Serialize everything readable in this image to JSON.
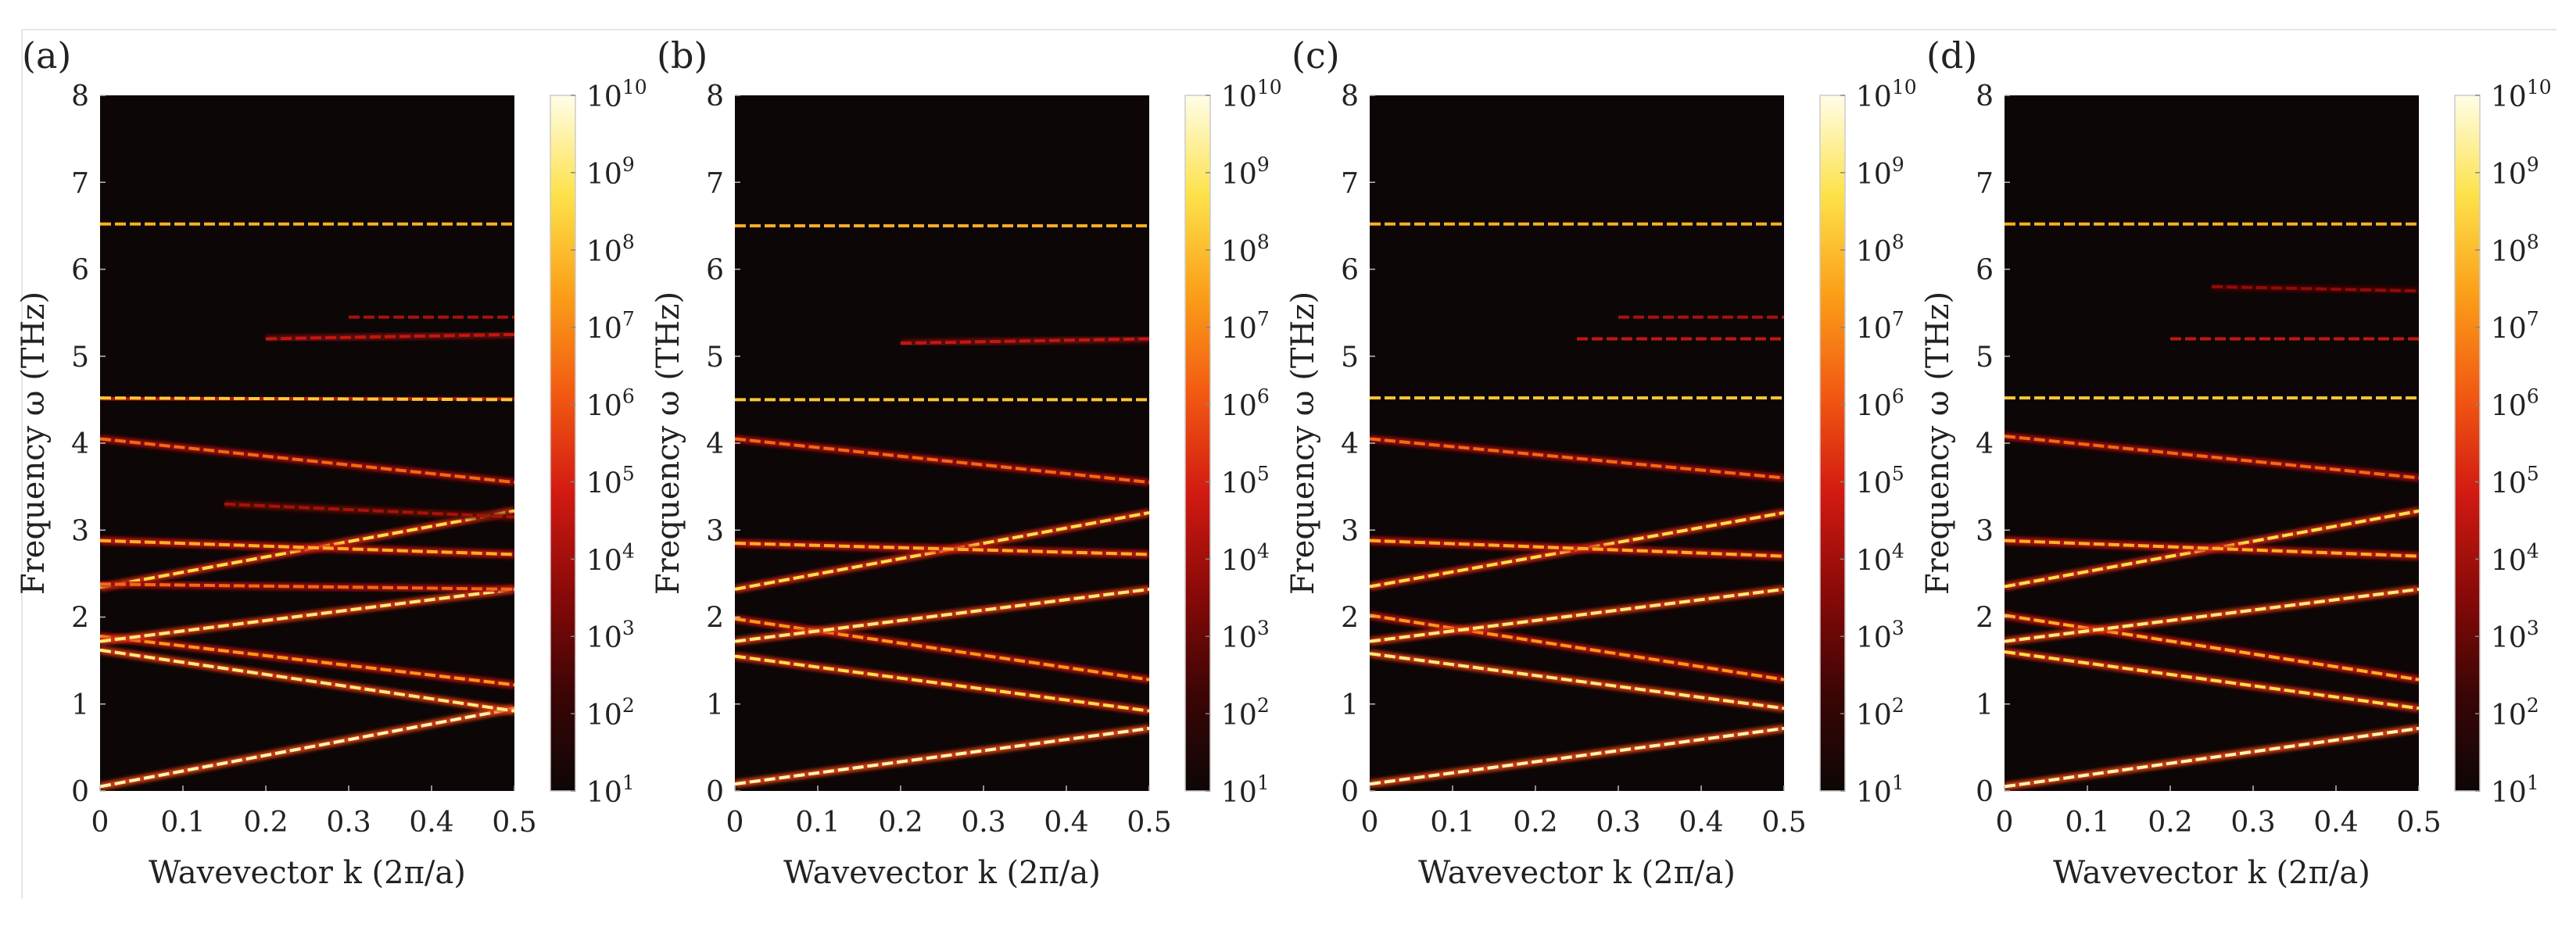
{
  "figure": {
    "background": "#ffffff",
    "colormap": [
      "#0d0606",
      "#3d0505",
      "#8a0a08",
      "#d21a12",
      "#f25a12",
      "#fb9f18",
      "#fde24a",
      "#fffde8"
    ]
  },
  "chart_data": [
    {
      "type": "heatmap",
      "panel_label": "(a)",
      "xlabel": "Wavevector k (2π/a)",
      "ylabel": "Frequency ω (THz)",
      "xlim": [
        0,
        0.5
      ],
      "ylim": [
        0,
        8
      ],
      "xticks": [
        "0",
        "0.1",
        "0.2",
        "0.3",
        "0.4",
        "0.5"
      ],
      "yticks": [
        "0",
        "1",
        "2",
        "3",
        "4",
        "5",
        "6",
        "7",
        "8"
      ],
      "colorbar": {
        "scale": "log",
        "range": [
          10,
          10000000000
        ],
        "tick_exponents": [
          "1",
          "2",
          "3",
          "4",
          "5",
          "6",
          "7",
          "8",
          "9",
          "10"
        ]
      },
      "bands": [
        {
          "k": [
            0,
            0.5
          ],
          "omega": [
            0.05,
            0.95
          ],
          "intensity": 0.95
        },
        {
          "k": [
            0,
            0.5
          ],
          "omega": [
            1.62,
            0.92
          ],
          "intensity": 0.9
        },
        {
          "k": [
            0,
            0.5
          ],
          "omega": [
            1.78,
            1.22
          ],
          "intensity": 0.7
        },
        {
          "k": [
            0,
            0.5
          ],
          "omega": [
            1.72,
            2.32
          ],
          "intensity": 0.9
        },
        {
          "k": [
            0,
            0.5
          ],
          "omega": [
            2.34,
            3.22
          ],
          "intensity": 0.85
        },
        {
          "k": [
            0,
            0.5
          ],
          "omega": [
            2.38,
            2.32
          ],
          "intensity": 0.6
        },
        {
          "k": [
            0,
            0.5
          ],
          "omega": [
            2.88,
            2.72
          ],
          "intensity": 0.75
        },
        {
          "k": [
            0,
            0.5
          ],
          "omega": [
            4.05,
            3.55
          ],
          "intensity": 0.6
        },
        {
          "k": [
            0,
            0.5
          ],
          "omega": [
            4.52,
            4.5
          ],
          "intensity": 0.8
        },
        {
          "k": [
            0.15,
            0.5
          ],
          "omega": [
            3.3,
            3.15
          ],
          "intensity": 0.35
        },
        {
          "k": [
            0.2,
            0.5
          ],
          "omega": [
            5.2,
            5.25
          ],
          "intensity": 0.4
        },
        {
          "k": [
            0.3,
            0.5
          ],
          "omega": [
            5.45,
            5.45
          ],
          "intensity": 0.35
        },
        {
          "k": [
            0,
            0.5
          ],
          "omega": [
            6.52,
            6.52
          ],
          "intensity": 0.75
        }
      ]
    },
    {
      "type": "heatmap",
      "panel_label": "(b)",
      "xlabel": "Wavevector k (2π/a)",
      "ylabel": "Frequency ω (THz)",
      "xlim": [
        0,
        0.5
      ],
      "ylim": [
        0,
        8
      ],
      "xticks": [
        "0",
        "0.1",
        "0.2",
        "0.3",
        "0.4",
        "0.5"
      ],
      "yticks": [
        "0",
        "1",
        "2",
        "3",
        "4",
        "5",
        "6",
        "7",
        "8"
      ],
      "colorbar": {
        "scale": "log",
        "range": [
          10,
          10000000000
        ],
        "tick_exponents": [
          "1",
          "2",
          "3",
          "4",
          "5",
          "6",
          "7",
          "8",
          "9",
          "10"
        ]
      },
      "bands": [
        {
          "k": [
            0,
            0.5
          ],
          "omega": [
            0.08,
            0.72
          ],
          "intensity": 0.95
        },
        {
          "k": [
            0,
            0.5
          ],
          "omega": [
            1.55,
            0.92
          ],
          "intensity": 0.85
        },
        {
          "k": [
            0,
            0.5
          ],
          "omega": [
            1.98,
            1.28
          ],
          "intensity": 0.7
        },
        {
          "k": [
            0,
            0.5
          ],
          "omega": [
            1.72,
            2.32
          ],
          "intensity": 0.9
        },
        {
          "k": [
            0,
            0.5
          ],
          "omega": [
            2.32,
            3.2
          ],
          "intensity": 0.85
        },
        {
          "k": [
            0,
            0.5
          ],
          "omega": [
            2.85,
            2.72
          ],
          "intensity": 0.75
        },
        {
          "k": [
            0,
            0.5
          ],
          "omega": [
            4.05,
            3.55
          ],
          "intensity": 0.6
        },
        {
          "k": [
            0,
            0.5
          ],
          "omega": [
            4.5,
            4.5
          ],
          "intensity": 0.8
        },
        {
          "k": [
            0.2,
            0.5
          ],
          "omega": [
            5.15,
            5.2
          ],
          "intensity": 0.4
        },
        {
          "k": [
            0,
            0.5
          ],
          "omega": [
            6.5,
            6.5
          ],
          "intensity": 0.75
        }
      ]
    },
    {
      "type": "heatmap",
      "panel_label": "(c)",
      "xlabel": "Wavevector k (2π/a)",
      "ylabel": "Frequency ω (THz)",
      "xlim": [
        0,
        0.5
      ],
      "ylim": [
        0,
        8
      ],
      "xticks": [
        "0",
        "0.1",
        "0.2",
        "0.3",
        "0.4",
        "0.5"
      ],
      "yticks": [
        "0",
        "1",
        "2",
        "3",
        "4",
        "5",
        "6",
        "7",
        "8"
      ],
      "colorbar": {
        "scale": "log",
        "range": [
          10,
          10000000000
        ],
        "tick_exponents": [
          "1",
          "2",
          "3",
          "4",
          "5",
          "6",
          "7",
          "8",
          "9",
          "10"
        ]
      },
      "bands": [
        {
          "k": [
            0,
            0.5
          ],
          "omega": [
            0.08,
            0.72
          ],
          "intensity": 0.95
        },
        {
          "k": [
            0,
            0.5
          ],
          "omega": [
            1.58,
            0.95
          ],
          "intensity": 0.9
        },
        {
          "k": [
            0,
            0.5
          ],
          "omega": [
            2.02,
            1.28
          ],
          "intensity": 0.7
        },
        {
          "k": [
            0,
            0.5
          ],
          "omega": [
            1.72,
            2.32
          ],
          "intensity": 0.9
        },
        {
          "k": [
            0,
            0.5
          ],
          "omega": [
            2.35,
            3.2
          ],
          "intensity": 0.85
        },
        {
          "k": [
            0,
            0.5
          ],
          "omega": [
            2.88,
            2.7
          ],
          "intensity": 0.75
        },
        {
          "k": [
            0,
            0.5
          ],
          "omega": [
            4.05,
            3.6
          ],
          "intensity": 0.6
        },
        {
          "k": [
            0,
            0.5
          ],
          "omega": [
            4.52,
            4.52
          ],
          "intensity": 0.8
        },
        {
          "k": [
            0.25,
            0.5
          ],
          "omega": [
            5.2,
            5.2
          ],
          "intensity": 0.4
        },
        {
          "k": [
            0.3,
            0.5
          ],
          "omega": [
            5.45,
            5.45
          ],
          "intensity": 0.35
        },
        {
          "k": [
            0,
            0.5
          ],
          "omega": [
            6.52,
            6.52
          ],
          "intensity": 0.75
        }
      ]
    },
    {
      "type": "heatmap",
      "panel_label": "(d)",
      "xlabel": "Wavevector k (2π/a)",
      "ylabel": "Frequency ω (THz)",
      "xlim": [
        0,
        0.5
      ],
      "ylim": [
        0,
        8
      ],
      "xticks": [
        "0",
        "0.1",
        "0.2",
        "0.3",
        "0.4",
        "0.5"
      ],
      "yticks": [
        "0",
        "1",
        "2",
        "3",
        "4",
        "5",
        "6",
        "7",
        "8"
      ],
      "colorbar": {
        "scale": "log",
        "range": [
          10,
          10000000000
        ],
        "tick_exponents": [
          "1",
          "2",
          "3",
          "4",
          "5",
          "6",
          "7",
          "8",
          "9",
          "10"
        ]
      },
      "bands": [
        {
          "k": [
            0,
            0.5
          ],
          "omega": [
            0.05,
            0.72
          ],
          "intensity": 0.95
        },
        {
          "k": [
            0,
            0.5
          ],
          "omega": [
            1.6,
            0.95
          ],
          "intensity": 0.85
        },
        {
          "k": [
            0,
            0.5
          ],
          "omega": [
            2.02,
            1.28
          ],
          "intensity": 0.75
        },
        {
          "k": [
            0,
            0.5
          ],
          "omega": [
            1.72,
            2.32
          ],
          "intensity": 0.9
        },
        {
          "k": [
            0,
            0.5
          ],
          "omega": [
            2.35,
            3.22
          ],
          "intensity": 0.85
        },
        {
          "k": [
            0,
            0.5
          ],
          "omega": [
            2.88,
            2.7
          ],
          "intensity": 0.75
        },
        {
          "k": [
            0,
            0.5
          ],
          "omega": [
            4.08,
            3.6
          ],
          "intensity": 0.6
        },
        {
          "k": [
            0,
            0.5
          ],
          "omega": [
            4.52,
            4.52
          ],
          "intensity": 0.8
        },
        {
          "k": [
            0.2,
            0.5
          ],
          "omega": [
            5.2,
            5.2
          ],
          "intensity": 0.4
        },
        {
          "k": [
            0.25,
            0.5
          ],
          "omega": [
            5.8,
            5.75
          ],
          "intensity": 0.3
        },
        {
          "k": [
            0,
            0.5
          ],
          "omega": [
            6.52,
            6.52
          ],
          "intensity": 0.75
        }
      ]
    }
  ]
}
